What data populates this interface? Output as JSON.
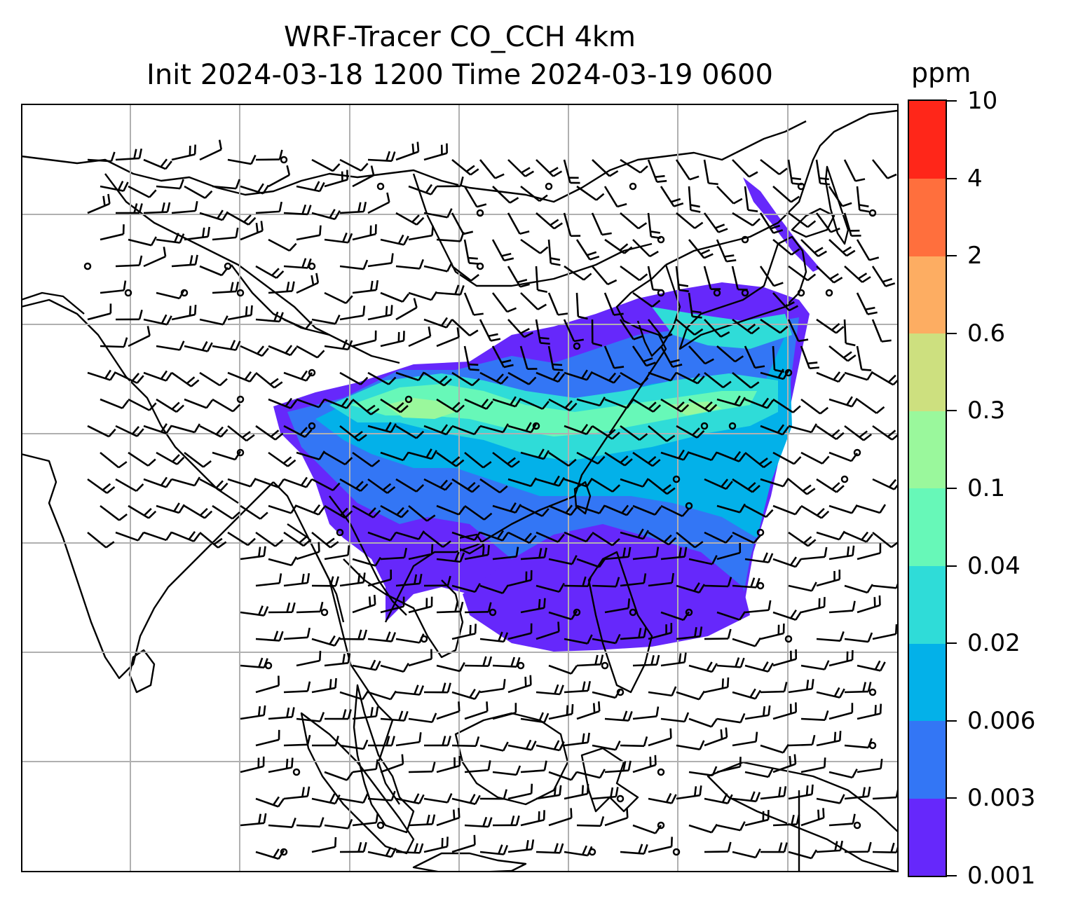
{
  "title": {
    "line1": "WRF-Tracer CO_CCH 4km",
    "line2": "Init 2024-03-18 1200 Time 2024-03-19 0600"
  },
  "colorbar": {
    "unit": "ppm",
    "levels": [
      "0.001",
      "0.003",
      "0.006",
      "0.02",
      "0.04",
      "0.1",
      "0.3",
      "0.6",
      "2",
      "4",
      "10"
    ],
    "colors": [
      "#6628fb",
      "#3376f5",
      "#03b1e9",
      "#2fdcd8",
      "#67f8b8",
      "#9af89c",
      "#cde07f",
      "#fdad62",
      "#ff6f3d",
      "#ff2619"
    ]
  },
  "map": {
    "gridlines": true,
    "plume_colors": {
      "lowest": "#6628fb",
      "low": "#3376f5",
      "mid": "#03b1e9",
      "midhigh": "#2fdcd8",
      "high": "#67f8b8",
      "peak": "#9af89c"
    },
    "coastline_color": "#000000",
    "grid_color": "#b0b0b0",
    "barb_color": "#000000"
  }
}
